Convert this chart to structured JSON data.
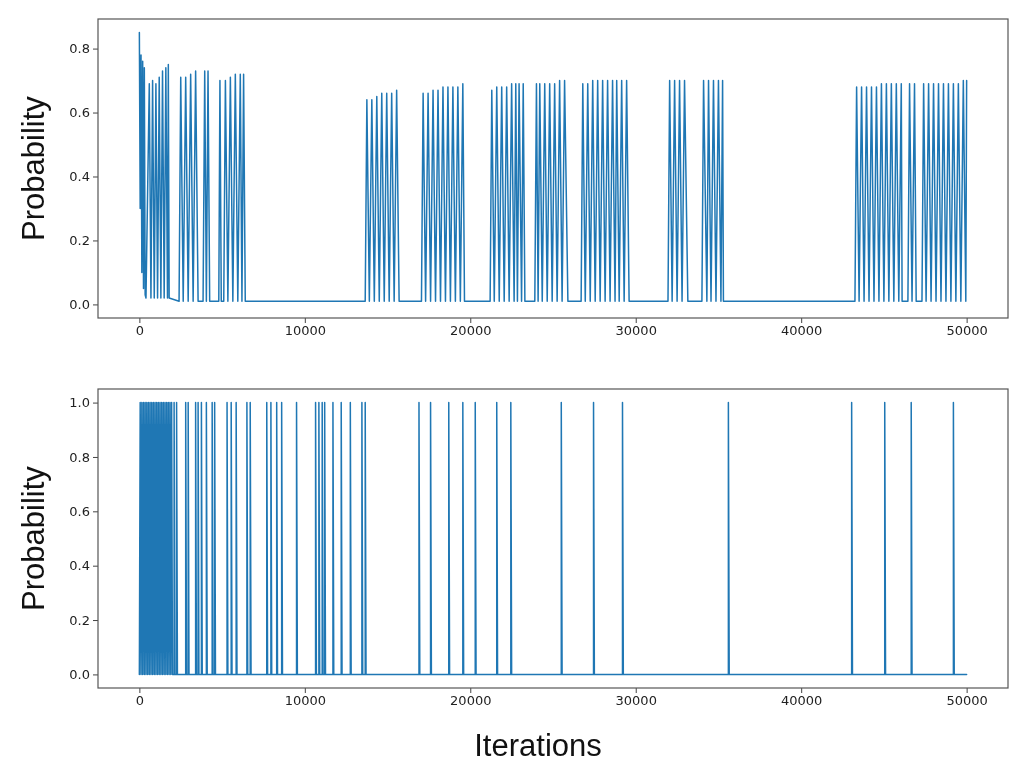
{
  "chart_data": [
    {
      "type": "line",
      "ylabel": "Probability",
      "xlim": [
        -2500,
        52500
      ],
      "ylim": [
        -0.0425,
        0.8925
      ],
      "xticks": [
        0,
        10000,
        20000,
        30000,
        40000,
        50000
      ],
      "yticks": [
        {
          "value": 0,
          "label": "0.0"
        },
        {
          "value": 0.2,
          "label": "0.2"
        },
        {
          "value": 0.4,
          "label": "0.4"
        },
        {
          "value": 0.6,
          "label": "0.6"
        },
        {
          "value": 0.8,
          "label": "0.8"
        }
      ],
      "line_style": "solid",
      "series": [
        {
          "color": "#1f77b4",
          "x": [
            0,
            50,
            100,
            150,
            200,
            250,
            300,
            350,
            400,
            600,
            700,
            800,
            900,
            1000,
            1100,
            1200,
            1300,
            1400,
            1500,
            1600,
            1700,
            1750,
            1800,
            2400,
            2500,
            2650,
            2800,
            2950,
            3100,
            3250,
            3400,
            3550,
            3850,
            3950,
            4050,
            4150,
            4250,
            4800,
            4870,
            4950,
            5100,
            5200,
            5350,
            5500,
            5650,
            5800,
            5950,
            6100,
            6200,
            6300,
            6400,
            13650,
            13750,
            13900,
            14050,
            14200,
            14350,
            14500,
            14650,
            14800,
            14950,
            15100,
            15250,
            15400,
            15550,
            15700,
            17050,
            17150,
            17300,
            17450,
            17600,
            17750,
            17900,
            18050,
            18200,
            18350,
            18500,
            18650,
            18800,
            18950,
            19100,
            19250,
            19400,
            19550,
            19650,
            21200,
            21300,
            21450,
            21600,
            21750,
            21900,
            22050,
            22200,
            22350,
            22500,
            22650,
            22750,
            22850,
            22950,
            23100,
            23200,
            23300,
            23900,
            24000,
            24100,
            24200,
            24350,
            24500,
            24650,
            24800,
            24950,
            25100,
            25250,
            25400,
            25550,
            25700,
            25900,
            26700,
            26800,
            26950,
            27100,
            27250,
            27400,
            27550,
            27700,
            27850,
            28000,
            28150,
            28300,
            28450,
            28600,
            28750,
            28850,
            29000,
            29150,
            29300,
            29450,
            29600,
            31950,
            32050,
            32200,
            32350,
            32500,
            32650,
            32800,
            32950,
            33150,
            34000,
            34100,
            34300,
            34400,
            34550,
            34700,
            34850,
            35000,
            35150,
            35250,
            35300,
            43250,
            43350,
            43500,
            43650,
            43800,
            43950,
            44100,
            44250,
            44400,
            44550,
            44700,
            44850,
            45000,
            45150,
            45300,
            45450,
            45600,
            45750,
            45900,
            46050,
            46100,
            46450,
            46550,
            46700,
            46850,
            46950,
            47300,
            47400,
            47550,
            47700,
            47850,
            48000,
            48150,
            48300,
            48450,
            48600,
            48750,
            48900,
            49050,
            49200,
            49350,
            49500,
            49650,
            49800,
            49950,
            50000
          ],
          "values": [
            0.85,
            0.3,
            0.78,
            0.1,
            0.76,
            0.05,
            0.74,
            0.03,
            0.02,
            0.69,
            0.02,
            0.7,
            0.02,
            0.69,
            0.02,
            0.71,
            0.02,
            0.73,
            0.02,
            0.74,
            0.02,
            0.75,
            0.02,
            0.01,
            0.71,
            0.01,
            0.71,
            0.01,
            0.72,
            0.01,
            0.73,
            0.01,
            0.01,
            0.73,
            0.01,
            0.73,
            0.01,
            0.01,
            0.7,
            0.01,
            0.01,
            0.7,
            0.01,
            0.71,
            0.01,
            0.72,
            0.01,
            0.72,
            0.01,
            0.72,
            0.01,
            0.01,
            0.64,
            0.01,
            0.64,
            0.01,
            0.65,
            0.01,
            0.66,
            0.01,
            0.66,
            0.01,
            0.66,
            0.01,
            0.67,
            0.01,
            0.01,
            0.66,
            0.01,
            0.66,
            0.01,
            0.67,
            0.01,
            0.67,
            0.01,
            0.68,
            0.01,
            0.68,
            0.01,
            0.68,
            0.01,
            0.68,
            0.01,
            0.69,
            0.01,
            0.01,
            0.67,
            0.01,
            0.68,
            0.01,
            0.68,
            0.01,
            0.68,
            0.01,
            0.69,
            0.01,
            0.69,
            0.01,
            0.69,
            0.01,
            0.69,
            0.01,
            0.01,
            0.69,
            0.01,
            0.69,
            0.01,
            0.69,
            0.01,
            0.69,
            0.01,
            0.69,
            0.01,
            0.7,
            0.01,
            0.7,
            0.01,
            0.01,
            0.69,
            0.01,
            0.69,
            0.01,
            0.7,
            0.01,
            0.7,
            0.01,
            0.7,
            0.01,
            0.7,
            0.01,
            0.7,
            0.01,
            0.7,
            0.01,
            0.7,
            0.01,
            0.7,
            0.01,
            0.01,
            0.7,
            0.01,
            0.7,
            0.01,
            0.7,
            0.01,
            0.7,
            0.01,
            0.01,
            0.7,
            0.01,
            0.7,
            0.01,
            0.7,
            0.01,
            0.7,
            0.01,
            0.7,
            0.01,
            0.01,
            0.68,
            0.01,
            0.68,
            0.01,
            0.68,
            0.01,
            0.68,
            0.01,
            0.68,
            0.01,
            0.69,
            0.01,
            0.69,
            0.01,
            0.69,
            0.01,
            0.69,
            0.01,
            0.69,
            0.01,
            0.01,
            0.69,
            0.01,
            0.69,
            0.01,
            0.01,
            0.69,
            0.01,
            0.69,
            0.01,
            0.69,
            0.01,
            0.69,
            0.01,
            0.69,
            0.01,
            0.69,
            0.01,
            0.69,
            0.01,
            0.69,
            0.01,
            0.7,
            0.01,
            0.7
          ]
        }
      ]
    },
    {
      "type": "line",
      "ylabel": "Probability",
      "xlabel": "Iterations",
      "xlim": [
        -2500,
        52500
      ],
      "ylim": [
        -0.05,
        1.05
      ],
      "xticks": [
        0,
        10000,
        20000,
        30000,
        40000,
        50000
      ],
      "yticks": [
        {
          "value": 0,
          "label": "0.0"
        },
        {
          "value": 0.2,
          "label": "0.2"
        },
        {
          "value": 0.4,
          "label": "0.4"
        },
        {
          "value": 0.6,
          "label": "0.6"
        },
        {
          "value": 0.8,
          "label": "0.8"
        },
        {
          "value": 1,
          "label": "1.0"
        }
      ],
      "line_style": "solid",
      "series": [
        {
          "color": "#1f77b4",
          "x": [
            0,
            50,
            100,
            150,
            200,
            250,
            300,
            350,
            400,
            450,
            500,
            550,
            600,
            650,
            700,
            750,
            800,
            850,
            900,
            950,
            1000,
            1050,
            1100,
            1150,
            1200,
            1250,
            1300,
            1350,
            1400,
            1450,
            1500,
            1550,
            1600,
            1650,
            1700,
            1750,
            1800,
            1850,
            1900,
            1950,
            2000,
            2100,
            2100,
            2150,
            2250,
            2250,
            2300,
            2800,
            2800,
            2850,
            2950,
            2950,
            3000,
            3400,
            3400,
            3450,
            3550,
            3550,
            3600,
            3750,
            3750,
            3800,
            4050,
            4050,
            4100,
            4400,
            4400,
            4450,
            4550,
            4550,
            4600,
            5300,
            5300,
            5350,
            5550,
            5550,
            5600,
            5850,
            5850,
            5900,
            6500,
            6500,
            6550,
            6700,
            6700,
            6750,
            7700,
            7700,
            7750,
            7950,
            7950,
            8000,
            8300,
            8300,
            8350,
            8600,
            8600,
            8650,
            9500,
            9500,
            9550,
            10650,
            10650,
            10700,
            10850,
            10850,
            10900,
            11050,
            11050,
            11100,
            11200,
            11200,
            11250,
            11700,
            11700,
            11750,
            12200,
            12200,
            12250,
            12750,
            12750,
            12800,
            13450,
            13450,
            13500,
            13650,
            13650,
            13700,
            16900,
            16900,
            16950,
            17600,
            17600,
            17650,
            18700,
            18700,
            18750,
            19550,
            19550,
            19600,
            20300,
            20300,
            20350,
            21600,
            21600,
            21650,
            22450,
            22450,
            22500,
            25500,
            25500,
            25550,
            27450,
            27450,
            27500,
            29200,
            29200,
            29250,
            35600,
            35600,
            35650,
            43050,
            43050,
            43100,
            45050,
            45050,
            45100,
            46650,
            46650,
            46700,
            49200,
            49200,
            49250,
            50000
          ],
          "values": [
            0,
            1,
            0,
            1,
            0,
            1,
            0,
            1,
            0,
            1,
            0,
            1,
            0,
            1,
            0,
            1,
            0,
            1,
            0,
            1,
            0,
            1,
            0,
            1,
            0,
            1,
            0,
            1,
            0,
            1,
            0,
            1,
            0,
            1,
            0,
            1,
            0,
            1,
            0,
            1,
            0,
            0,
            1,
            0,
            0,
            1,
            0,
            0,
            1,
            0,
            0,
            1,
            0,
            0,
            1,
            0,
            0,
            1,
            0,
            0,
            1,
            0,
            0,
            1,
            0,
            0,
            1,
            0,
            0,
            1,
            0,
            0,
            1,
            0,
            0,
            1,
            0,
            0,
            1,
            0,
            0,
            1,
            0,
            0,
            1,
            0,
            0,
            1,
            0,
            0,
            1,
            0,
            0,
            1,
            0,
            0,
            1,
            0,
            0,
            1,
            0,
            0,
            1,
            0,
            0,
            1,
            0,
            0,
            1,
            0,
            0,
            1,
            0,
            0,
            1,
            0,
            0,
            1,
            0,
            0,
            1,
            0,
            0,
            1,
            0,
            0,
            1,
            0,
            0,
            1,
            0,
            0,
            1,
            0,
            0,
            1,
            0,
            0,
            1,
            0,
            0,
            1,
            0,
            0,
            1,
            0,
            0,
            1,
            0,
            0,
            1,
            0,
            0,
            1,
            0,
            0,
            1,
            0,
            0,
            1,
            0,
            0,
            1,
            0,
            0,
            1,
            0,
            0,
            1,
            0,
            0,
            1,
            0,
            0
          ]
        }
      ]
    }
  ]
}
